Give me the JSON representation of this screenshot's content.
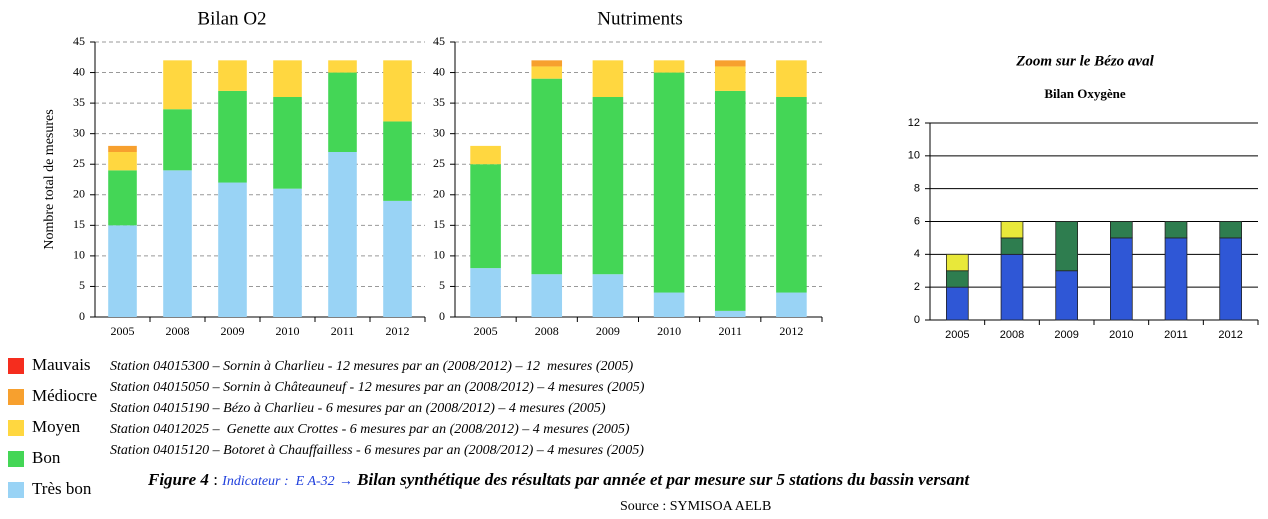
{
  "chart_data": [
    {
      "type": "bar",
      "stacked": true,
      "title": "Bilan O2",
      "ylabel": "Nombre total de mesures",
      "categories": [
        "2005",
        "2008",
        "2009",
        "2010",
        "2011",
        "2012"
      ],
      "series": [
        {
          "name": "Très bon",
          "color": "#99d3f5",
          "values": [
            15,
            24,
            22,
            21,
            27,
            19
          ]
        },
        {
          "name": "Bon",
          "color": "#44d656",
          "values": [
            9,
            10,
            15,
            15,
            13,
            13
          ]
        },
        {
          "name": "Moyen",
          "color": "#ffd740",
          "values": [
            3,
            8,
            5,
            6,
            2,
            10
          ]
        },
        {
          "name": "Médiocre",
          "color": "#f7a02e",
          "values": [
            1,
            0,
            0,
            0,
            0,
            0
          ]
        },
        {
          "name": "Mauvais",
          "color": "#f52d1e",
          "values": [
            0,
            0,
            0,
            0,
            0,
            0
          ]
        }
      ],
      "ylim": [
        0,
        45
      ],
      "yticks": [
        0,
        5,
        10,
        15,
        20,
        25,
        30,
        35,
        40,
        45
      ],
      "grid": true
    },
    {
      "type": "bar",
      "stacked": true,
      "title": "Nutriments",
      "categories": [
        "2005",
        "2008",
        "2009",
        "2010",
        "2011",
        "2012"
      ],
      "series": [
        {
          "color": "#99d3f5",
          "values": [
            8,
            7,
            7,
            4,
            1,
            4
          ]
        },
        {
          "color": "#44d656",
          "values": [
            17,
            32,
            29,
            36,
            36,
            32
          ]
        },
        {
          "color": "#ffd740",
          "values": [
            3,
            2,
            6,
            2,
            4,
            6
          ]
        },
        {
          "color": "#f7a02e",
          "values": [
            0,
            1,
            0,
            0,
            1,
            0
          ]
        },
        {
          "color": "#f52d1e",
          "values": [
            0,
            0,
            0,
            0,
            0,
            0
          ]
        }
      ],
      "ylim": [
        0,
        45
      ],
      "yticks": [
        0,
        5,
        10,
        15,
        20,
        25,
        30,
        35,
        40,
        45
      ],
      "grid": true
    },
    {
      "type": "bar",
      "stacked": true,
      "title": "Zoom sur le Bézo aval",
      "subtitle": "Bilan Oxygène",
      "categories": [
        "2005",
        "2008",
        "2009",
        "2010",
        "2011",
        "2012"
      ],
      "series": [
        {
          "color": "#2f57d6",
          "values": [
            2,
            4,
            3,
            5,
            5,
            5
          ]
        },
        {
          "color": "#2e7d4f",
          "values": [
            1,
            1,
            3,
            1,
            1,
            1
          ]
        },
        {
          "color": "#e8e83a",
          "values": [
            1,
            1,
            0,
            0,
            0,
            0
          ]
        }
      ],
      "ylim": [
        0,
        12
      ],
      "yticks": [
        0,
        2,
        4,
        6,
        8,
        10,
        12
      ],
      "grid": true
    }
  ],
  "stations": [
    "Station 04015300 – Sornin à Charlieu - 12 mesures par an (2008/2012) – 12  mesures (2005)",
    "Station 04015050 – Sornin à Châteauneuf - 12 mesures par an (2008/2012) – 4 mesures (2005)",
    "Station 04015190 – Bézo à Charlieu - 6 mesures par an (2008/2012) – 4 mesures (2005)",
    "Station 04012025 –  Genette aux Crottes - 6 mesures par an (2008/2012) – 4 mesures (2005)",
    "Station 04015120 – Botoret à Chauffailless - 6 mesures par an (2008/2012) – 4 mesures (2005)"
  ],
  "caption": {
    "figure": "Figure 4",
    "separator": ":",
    "indicator": "Indicateur :  E A-32",
    "arrow": "→",
    "text": "Bilan synthétique des résultats par année et par mesure sur 5 stations du bassin versant"
  },
  "source": "Source : SYMISOA AELB"
}
